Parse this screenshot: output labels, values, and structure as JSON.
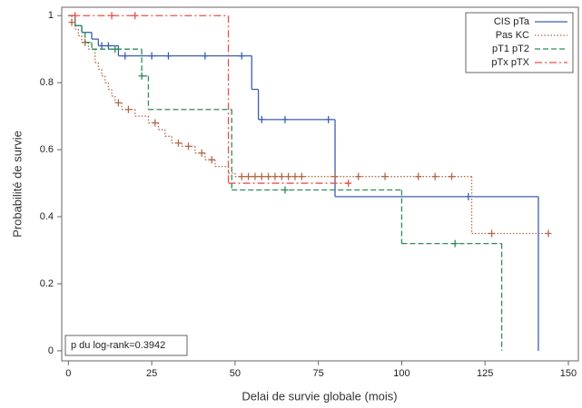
{
  "chart_data": {
    "type": "step",
    "x_label": "Delai de survie globale (mois)",
    "y_label": "Probabilité de survie",
    "annotation": "p du log-rank=0.3942",
    "xlim": [
      -2,
      153
    ],
    "ylim": [
      -0.03,
      1.025
    ],
    "xticks": [
      0,
      25,
      50,
      75,
      100,
      125,
      150
    ],
    "yticks": [
      0,
      0.2,
      0.4,
      0.6,
      0.8,
      1
    ],
    "legend": "top-right",
    "series": [
      {
        "name": "CIS pTa",
        "color": "#3a5fb0",
        "dash": "solid",
        "x": [
          0,
          2,
          4,
          7,
          9,
          15,
          55,
          57,
          80,
          141
        ],
        "values": [
          1,
          0.97,
          0.95,
          0.93,
          0.91,
          0.88,
          0.78,
          0.69,
          0.46,
          0
        ],
        "censor_x": [
          10,
          12,
          17,
          25,
          30,
          41,
          52,
          58,
          65,
          78,
          120
        ],
        "censor_values": [
          0.91,
          0.91,
          0.88,
          0.88,
          0.88,
          0.88,
          0.88,
          0.69,
          0.69,
          0.69,
          0.46
        ]
      },
      {
        "name": "Pas KC",
        "color": "#b06a4a",
        "dash": "dotted",
        "x": [
          0,
          1,
          2,
          3,
          4,
          6,
          8,
          9,
          10,
          11,
          12,
          13,
          14,
          16,
          20,
          24,
          27,
          29,
          31,
          34,
          38,
          41,
          44,
          48,
          50,
          121,
          144
        ],
        "values": [
          1,
          0.98,
          0.96,
          0.94,
          0.92,
          0.9,
          0.86,
          0.84,
          0.82,
          0.8,
          0.78,
          0.76,
          0.74,
          0.72,
          0.7,
          0.68,
          0.66,
          0.64,
          0.62,
          0.61,
          0.59,
          0.57,
          0.55,
          0.53,
          0.52,
          0.35,
          0.35
        ],
        "censor_x": [
          1,
          5,
          15,
          18,
          26,
          33,
          36,
          40,
          43,
          52,
          54,
          56,
          58,
          60,
          62,
          64,
          66,
          68,
          70,
          80,
          87,
          95,
          105,
          110,
          115,
          127,
          144
        ],
        "censor_values": [
          0.98,
          0.92,
          0.74,
          0.72,
          0.68,
          0.62,
          0.61,
          0.59,
          0.57,
          0.52,
          0.52,
          0.52,
          0.52,
          0.52,
          0.52,
          0.52,
          0.52,
          0.52,
          0.52,
          0.52,
          0.52,
          0.52,
          0.52,
          0.52,
          0.52,
          0.35,
          0.35
        ]
      },
      {
        "name": "pT1 pT2",
        "color": "#2f8a5a",
        "dash": "dashed",
        "x": [
          0,
          2,
          4,
          5,
          7,
          22,
          24,
          49,
          100,
          130
        ],
        "values": [
          1,
          0.97,
          0.95,
          0.92,
          0.9,
          0.82,
          0.72,
          0.48,
          0.32,
          0
        ],
        "censor_x": [
          14,
          22,
          65,
          116
        ],
        "censor_values": [
          0.9,
          0.82,
          0.48,
          0.32
        ]
      },
      {
        "name": "pTx pTX",
        "color": "#e8504a",
        "dash": "dashdot",
        "x": [
          0,
          48,
          84
        ],
        "values": [
          1,
          0.5,
          0.5
        ],
        "censor_x": [
          2,
          13,
          20,
          84
        ],
        "censor_values": [
          1,
          1,
          1,
          0.5
        ]
      }
    ]
  }
}
